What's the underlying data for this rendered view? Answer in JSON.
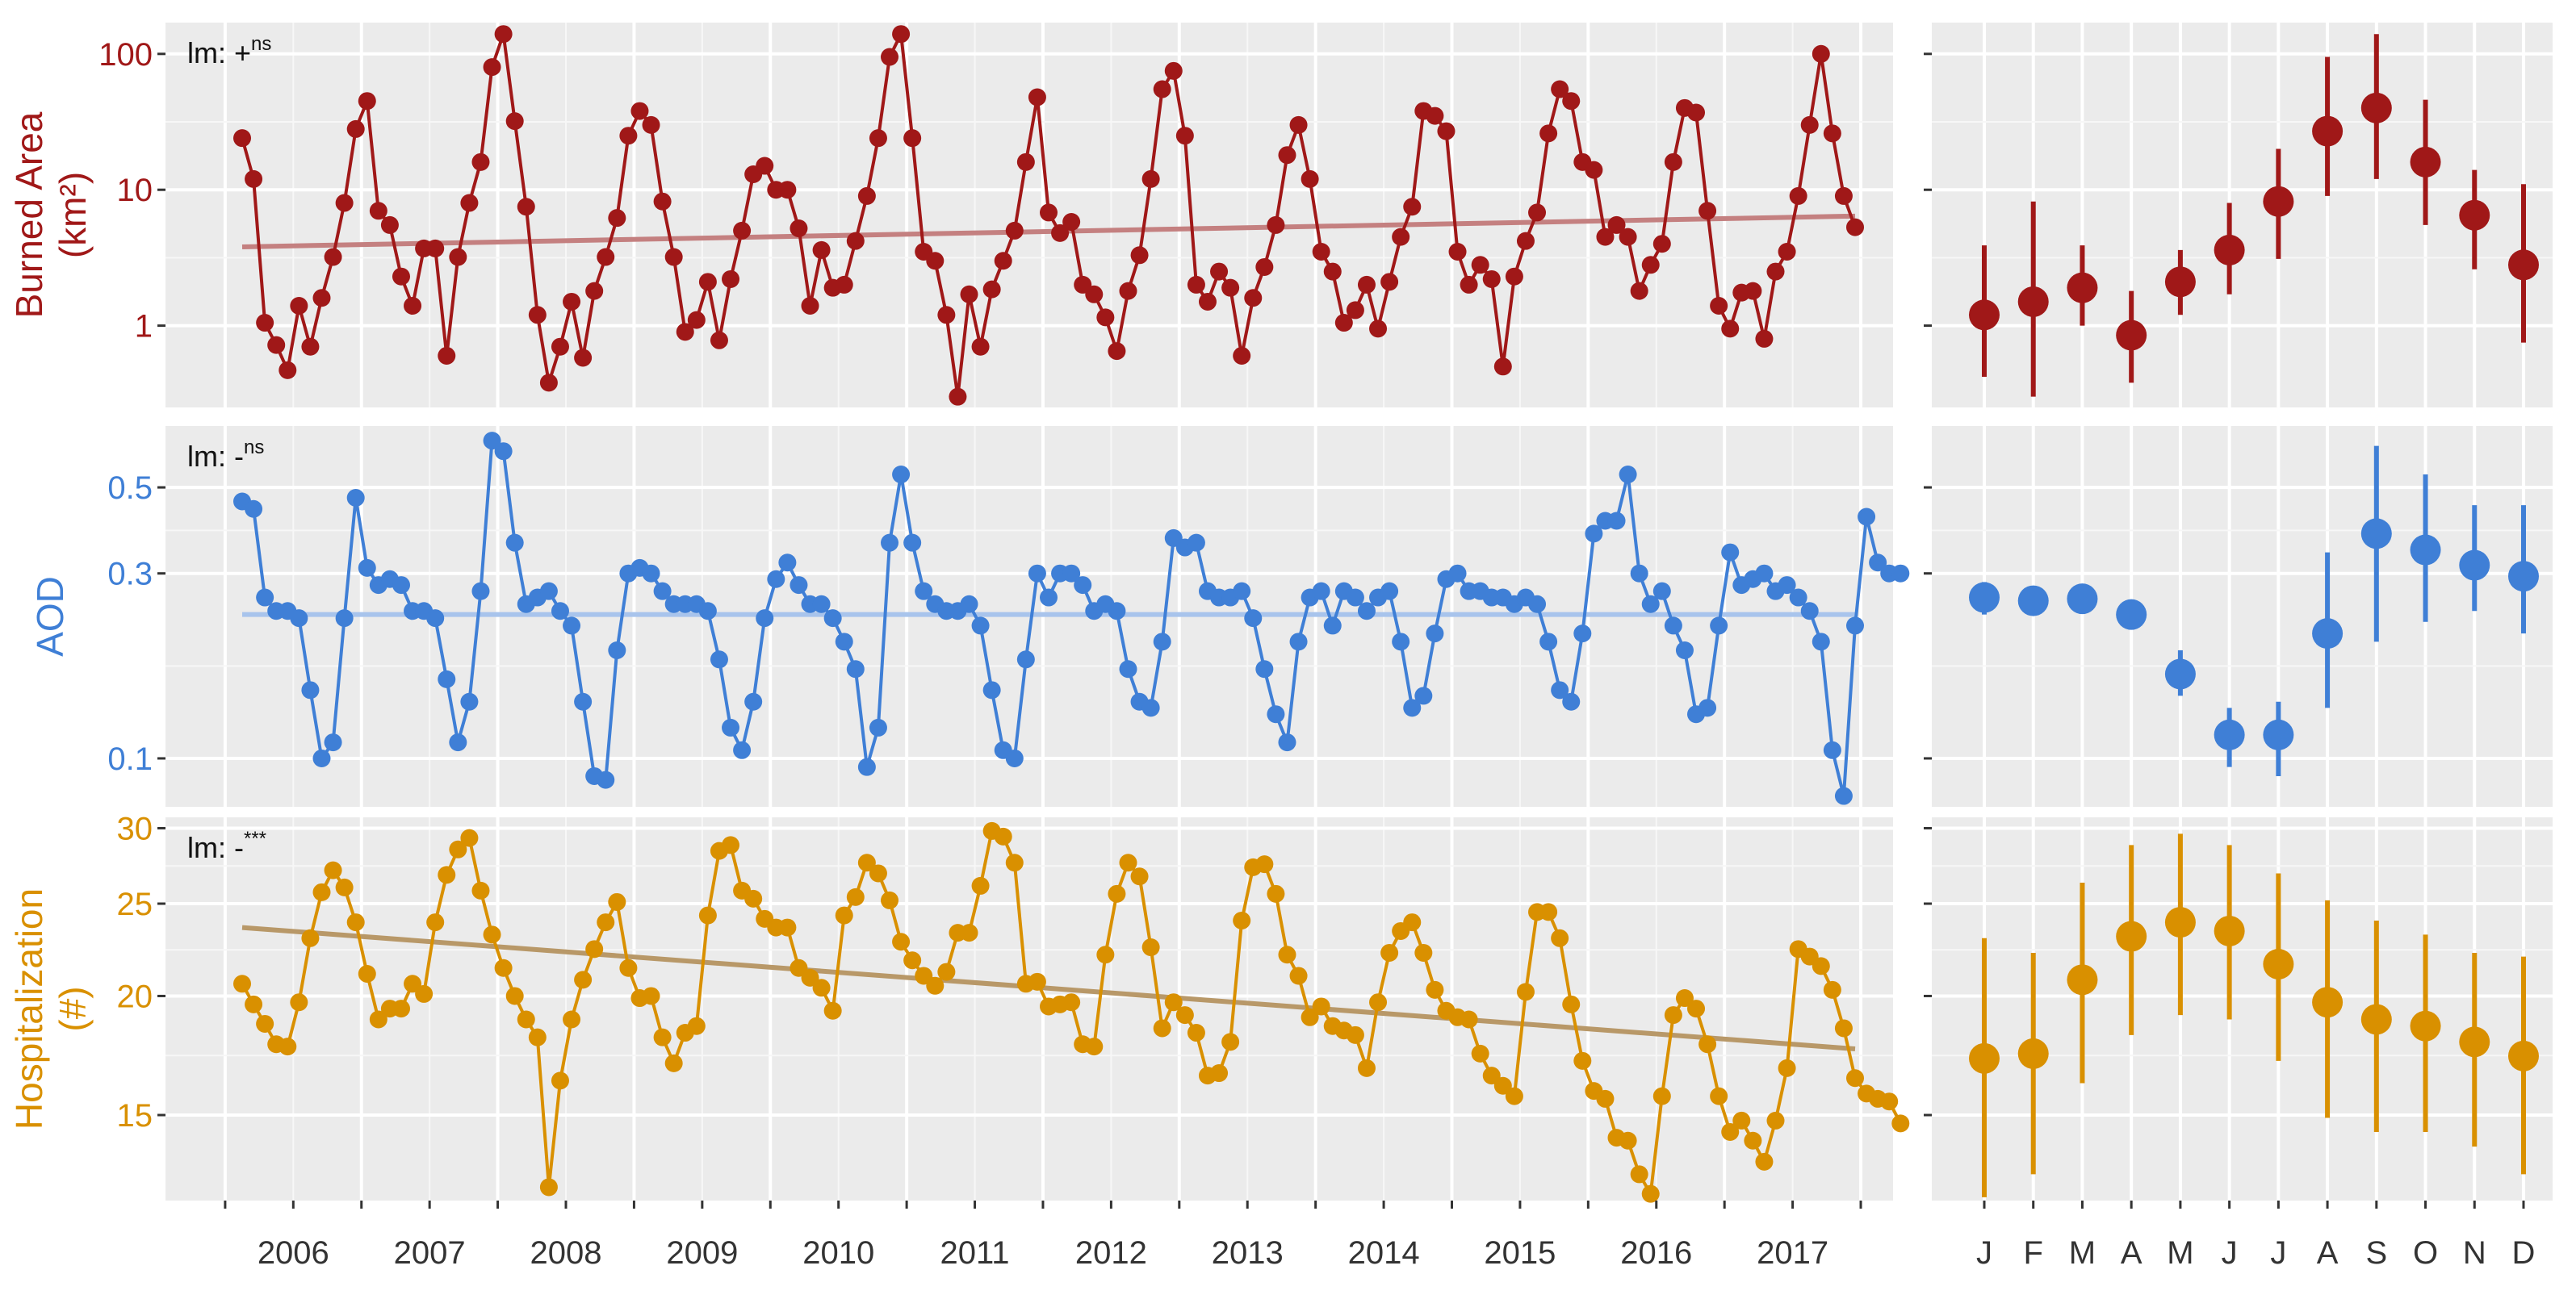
{
  "chart_data": [
    {
      "type": "line",
      "panel": "timeseries",
      "ylabel": "Burned Area (km²)",
      "ylabel_line1": "Burned Area",
      "ylabel_line2": "(km²)",
      "yscale": "log",
      "ylim": [
        0.25,
        170
      ],
      "yticks": [
        1,
        10,
        100
      ],
      "ytick_labels": [
        "1",
        "10",
        "100"
      ],
      "color": "#a01818",
      "trend_color": "#c48080",
      "trend": [
        3.8,
        6.4
      ],
      "annotation": {
        "text": "lm: +",
        "sup": "ns"
      },
      "values": [
        24,
        12,
        1.05,
        0.72,
        0.47,
        1.4,
        0.7,
        1.6,
        3.2,
        8,
        28,
        45,
        7,
        5.5,
        2.3,
        1.4,
        3.7,
        3.7,
        0.6,
        3.2,
        8,
        16,
        80,
        140,
        32,
        7.5,
        1.2,
        0.38,
        0.7,
        1.5,
        0.58,
        1.8,
        3.2,
        6.2,
        25,
        38,
        30,
        8.2,
        3.2,
        0.9,
        1.1,
        2.1,
        0.78,
        2.2,
        5,
        13,
        15,
        10,
        10,
        5.2,
        1.4,
        3.6,
        1.9,
        2,
        4.2,
        9,
        24,
        95,
        140,
        24,
        3.5,
        3,
        1.2,
        0.3,
        1.7,
        0.7,
        1.85,
        3,
        5,
        16,
        48,
        6.8,
        4.8,
        5.8,
        2,
        1.7,
        1.15,
        0.65,
        1.8,
        3.3,
        12,
        55,
        75,
        25,
        2,
        1.5,
        2.5,
        1.9,
        0.6,
        1.6,
        2.7,
        5.5,
        18,
        30,
        12,
        3.5,
        2.5,
        1.05,
        1.3,
        2,
        0.95,
        2.1,
        4.5,
        7.5,
        38,
        35,
        27,
        3.5,
        2,
        2.8,
        2.2,
        0.5,
        2.3,
        4.2,
        6.8,
        26,
        55,
        45,
        16,
        14,
        4.5,
        5.5,
        4.5,
        1.8,
        2.8,
        4,
        16,
        40,
        37,
        7,
        1.4,
        0.95,
        1.75,
        1.8,
        0.8,
        2.5,
        3.5,
        9,
        30,
        100,
        26,
        9,
        5.3
      ]
    },
    {
      "type": "line",
      "panel": "timeseries",
      "ylabel": "AOD",
      "yscale": "log",
      "ylim": [
        0.075,
        0.72
      ],
      "yticks": [
        0.1,
        0.3,
        0.5
      ],
      "ytick_labels": [
        "0.1",
        "0.3",
        "0.5"
      ],
      "color": "#3f7fd6",
      "trend_color": "#a8c4ec",
      "trend": [
        0.235,
        0.235
      ],
      "annotation": {
        "text": "lm: -",
        "sup": "ns"
      },
      "values": [
        0.46,
        0.44,
        0.26,
        0.24,
        0.24,
        0.23,
        0.15,
        0.1,
        0.11,
        0.23,
        0.47,
        0.31,
        0.28,
        0.29,
        0.28,
        0.24,
        0.24,
        0.23,
        0.16,
        0.11,
        0.14,
        0.27,
        0.66,
        0.62,
        0.36,
        0.25,
        0.26,
        0.27,
        0.24,
        0.22,
        0.14,
        0.09,
        0.088,
        0.19,
        0.3,
        0.31,
        0.3,
        0.27,
        0.25,
        0.25,
        0.25,
        0.24,
        0.18,
        0.12,
        0.105,
        0.14,
        0.23,
        0.29,
        0.32,
        0.28,
        0.25,
        0.25,
        0.23,
        0.2,
        0.17,
        0.095,
        0.12,
        0.36,
        0.54,
        0.36,
        0.27,
        0.25,
        0.24,
        0.24,
        0.25,
        0.22,
        0.15,
        0.105,
        0.1,
        0.18,
        0.3,
        0.26,
        0.3,
        0.3,
        0.28,
        0.24,
        0.25,
        0.24,
        0.17,
        0.14,
        0.135,
        0.2,
        0.37,
        0.35,
        0.36,
        0.27,
        0.26,
        0.26,
        0.27,
        0.23,
        0.17,
        0.13,
        0.11,
        0.2,
        0.26,
        0.27,
        0.22,
        0.27,
        0.26,
        0.24,
        0.26,
        0.27,
        0.2,
        0.135,
        0.145,
        0.21,
        0.29,
        0.3,
        0.27,
        0.27,
        0.26,
        0.26,
        0.25,
        0.26,
        0.25,
        0.2,
        0.15,
        0.14,
        0.21,
        0.38,
        0.41,
        0.41,
        0.54,
        0.3,
        0.25,
        0.27,
        0.22,
        0.19,
        0.13,
        0.135,
        0.22,
        0.34,
        0.28,
        0.29,
        0.3,
        0.27,
        0.28,
        0.26,
        0.24,
        0.2,
        0.105,
        0.08,
        0.22,
        0.42,
        0.32,
        0.3,
        0.3
      ]
    },
    {
      "type": "line",
      "panel": "timeseries",
      "ylabel": "Hospitalization (#)",
      "ylabel_line1": "Hospitalization",
      "ylabel_line2": "(#)",
      "yscale": "log",
      "ylim": [
        12.2,
        30.8
      ],
      "yticks": [
        15,
        20,
        25,
        30
      ],
      "ytick_labels": [
        "15",
        "20",
        "25",
        "30"
      ],
      "color": "#d99000",
      "trend_color": "#b89868",
      "trend": [
        23.6,
        17.6
      ],
      "annotation": {
        "text": "lm: -",
        "sup": "***"
      },
      "values": [
        20.6,
        19.6,
        18.7,
        17.8,
        17.7,
        19.7,
        23,
        25.7,
        27.1,
        26,
        23.9,
        21.1,
        18.9,
        19.4,
        19.4,
        20.6,
        20.1,
        23.9,
        26.8,
        28.5,
        29.3,
        25.8,
        23.2,
        21.4,
        20,
        18.9,
        18.1,
        12.6,
        16.3,
        18.9,
        20.8,
        22.4,
        23.9,
        25.1,
        21.4,
        19.9,
        20,
        18.1,
        17,
        18.3,
        18.6,
        24.3,
        28.4,
        28.8,
        25.8,
        25.3,
        24.1,
        23.6,
        23.6,
        21.4,
        20.9,
        20.4,
        19.3,
        24.3,
        25.4,
        27.6,
        26.9,
        25.2,
        22.8,
        21.8,
        21,
        20.5,
        21.2,
        23.3,
        23.3,
        26.1,
        29.8,
        29.4,
        27.6,
        20.6,
        20.7,
        19.5,
        19.6,
        19.7,
        17.8,
        17.7,
        22.1,
        25.6,
        27.6,
        26.7,
        22.5,
        18.5,
        19.7,
        19.1,
        18.3,
        16.5,
        16.6,
        17.9,
        24,
        27.3,
        27.5,
        25.6,
        22.1,
        21,
        19,
        19.5,
        18.6,
        18.4,
        18.2,
        16.8,
        19.7,
        22.2,
        23.4,
        23.9,
        22.2,
        20.3,
        19.3,
        19,
        18.9,
        17.4,
        16.5,
        16.1,
        15.7,
        20.2,
        24.5,
        24.5,
        23,
        19.6,
        17.1,
        15.9,
        15.6,
        14.2,
        14.1,
        13,
        12.4,
        15.7,
        19.1,
        19.9,
        19.4,
        17.8,
        15.7,
        14.4,
        14.8,
        14.1,
        13.4,
        14.8,
        16.8,
        22.4,
        22,
        21.5,
        20.3,
        18.5,
        16.4,
        15.8,
        15.6,
        15.5,
        14.7
      ]
    },
    {
      "type": "scatter",
      "panel": "monthly",
      "series": "Burned Area",
      "yscale": "log",
      "color": "#a01818",
      "categories": [
        "J",
        "F",
        "M",
        "A",
        "M",
        "J",
        "J",
        "A",
        "S",
        "O",
        "N",
        "D"
      ],
      "values": [
        1.2,
        1.5,
        1.9,
        0.85,
        2.1,
        3.6,
        8.2,
        27,
        40,
        16,
        6.5,
        2.8
      ],
      "lower": [
        0.42,
        0.3,
        1.0,
        0.38,
        1.2,
        1.7,
        3.1,
        9,
        12,
        5.5,
        2.6,
        0.75
      ],
      "upper": [
        3.9,
        8.2,
        3.9,
        1.8,
        3.6,
        8,
        20,
        95,
        140,
        46,
        14,
        11
      ]
    },
    {
      "type": "scatter",
      "panel": "monthly",
      "series": "AOD",
      "yscale": "log",
      "color": "#3f7fd6",
      "categories": [
        "J",
        "F",
        "M",
        "A",
        "M",
        "J",
        "J",
        "A",
        "S",
        "O",
        "N",
        "D"
      ],
      "values": [
        0.26,
        0.255,
        0.258,
        0.235,
        0.165,
        0.115,
        0.115,
        0.21,
        0.38,
        0.345,
        0.315,
        0.295
      ],
      "lower": [
        0.235,
        0.235,
        0.24,
        0.215,
        0.145,
        0.095,
        0.09,
        0.135,
        0.2,
        0.225,
        0.24,
        0.21
      ],
      "upper": [
        0.285,
        0.275,
        0.275,
        0.255,
        0.19,
        0.135,
        0.14,
        0.34,
        0.64,
        0.54,
        0.45,
        0.45
      ]
    },
    {
      "type": "scatter",
      "panel": "monthly",
      "series": "Hospitalization",
      "yscale": "log",
      "color": "#d99000",
      "categories": [
        "J",
        "F",
        "M",
        "A",
        "M",
        "J",
        "J",
        "A",
        "S",
        "O",
        "N",
        "D"
      ],
      "values": [
        17.2,
        17.4,
        20.8,
        23.1,
        23.9,
        23.4,
        21.6,
        19.7,
        18.9,
        18.6,
        17.9,
        17.3
      ],
      "lower": [
        12.3,
        13.0,
        16.2,
        18.2,
        19.1,
        18.9,
        17.1,
        14.9,
        14.4,
        14.4,
        13.9,
        13.0
      ],
      "upper": [
        23.0,
        22.2,
        26.3,
        28.8,
        29.6,
        28.8,
        26.9,
        25.2,
        24.0,
        23.2,
        22.2,
        22.0
      ]
    }
  ],
  "x_axis": {
    "years": [
      "2006",
      "2007",
      "2008",
      "2009",
      "2010",
      "2011",
      "2012",
      "2013",
      "2014",
      "2015",
      "2016",
      "2017"
    ],
    "months": [
      "J",
      "F",
      "M",
      "A",
      "M",
      "J",
      "J",
      "A",
      "S",
      "O",
      "N",
      "D"
    ]
  }
}
